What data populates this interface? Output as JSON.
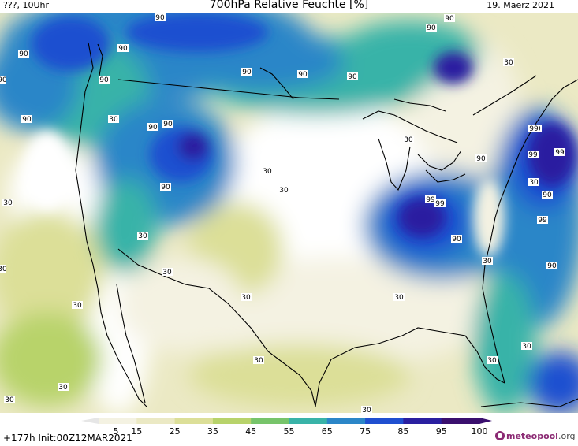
{
  "header": {
    "left": "???, 10Uhr",
    "title": "700hPa Relative Feuchte [%]",
    "date": "19. Maerz 2021"
  },
  "footer": {
    "init": "+177h  Init:00Z12MAR2021",
    "brand_main": "meteopool",
    "brand_suffix": ".org"
  },
  "legend": {
    "levels": [
      "5",
      "15",
      "25",
      "35",
      "45",
      "55",
      "65",
      "75",
      "85",
      "95",
      "100"
    ],
    "colors": [
      "#ffffff",
      "#f4f2e2",
      "#ebe9c4",
      "#dcdf98",
      "#b8d36b",
      "#77c46a",
      "#39b3a8",
      "#2b86c8",
      "#1f4fd0",
      "#2a1fa0",
      "#3a0f6e"
    ]
  },
  "map": {
    "contour_labels": [
      {
        "text": "90"
      },
      {
        "text": "90"
      },
      {
        "text": "90"
      },
      {
        "text": "90"
      },
      {
        "text": "90"
      },
      {
        "text": "90"
      },
      {
        "text": "90"
      },
      {
        "text": "90"
      },
      {
        "text": "90"
      },
      {
        "text": "90"
      },
      {
        "text": "90"
      },
      {
        "text": "90"
      },
      {
        "text": "90"
      },
      {
        "text": "90"
      },
      {
        "text": "90"
      },
      {
        "text": "90"
      },
      {
        "text": "90"
      },
      {
        "text": "90"
      },
      {
        "text": "90"
      },
      {
        "text": "99"
      },
      {
        "text": "99"
      },
      {
        "text": "99"
      },
      {
        "text": "99"
      },
      {
        "text": "99"
      },
      {
        "text": "99"
      },
      {
        "text": "30"
      },
      {
        "text": "30"
      },
      {
        "text": "30"
      },
      {
        "text": "30"
      },
      {
        "text": "30"
      },
      {
        "text": "30"
      },
      {
        "text": "30"
      },
      {
        "text": "30"
      },
      {
        "text": "30"
      },
      {
        "text": "30"
      },
      {
        "text": "30"
      },
      {
        "text": "30"
      },
      {
        "text": "30"
      },
      {
        "text": "30"
      },
      {
        "text": "30"
      },
      {
        "text": "30"
      },
      {
        "text": "30"
      },
      {
        "text": "30"
      },
      {
        "text": "30"
      },
      {
        "text": "30"
      }
    ]
  }
}
